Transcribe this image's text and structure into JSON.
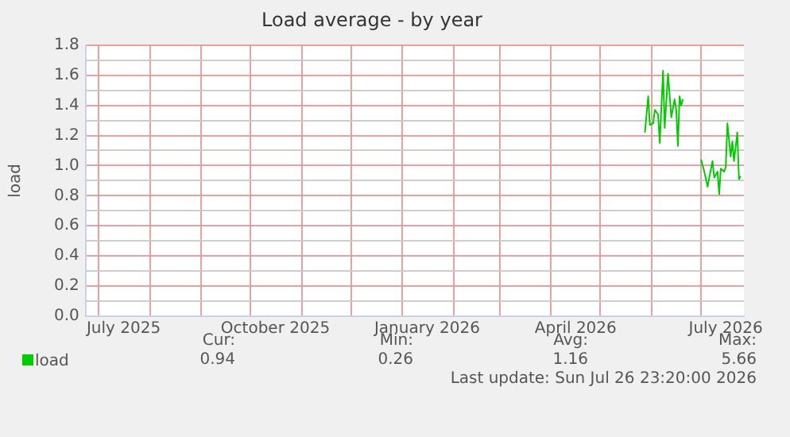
{
  "chart_data": {
    "type": "line",
    "title": "Load average - by year",
    "ylabel": "load",
    "x": [
      "2026-05-28",
      "2026-05-30",
      "2026-05-31",
      "2026-06-02",
      "2026-06-03",
      "2026-06-05",
      "2026-06-06",
      "2026-06-08",
      "2026-06-09",
      "2026-06-11",
      "2026-06-13",
      "2026-06-15",
      "2026-06-16",
      "2026-06-17",
      "2026-06-18",
      "2026-06-19",
      "2026-06-20",
      "2026-06-25",
      "2026-07-01",
      "2026-07-03",
      "2026-07-05",
      "2026-07-06",
      "2026-07-08",
      "2026-07-09",
      "2026-07-11",
      "2026-07-12",
      "2026-07-13",
      "2026-07-15",
      "2026-07-16",
      "2026-07-17",
      "2026-07-19",
      "2026-07-20",
      "2026-07-21",
      "2026-07-23",
      "2026-07-24",
      "2026-07-25"
    ],
    "series": [
      {
        "name": "load",
        "color": "#00cc00",
        "values": [
          1.22,
          1.46,
          1.27,
          1.28,
          1.37,
          1.34,
          1.15,
          1.63,
          1.25,
          1.61,
          1.32,
          1.44,
          1.37,
          1.13,
          1.46,
          1.4,
          1.44,
          null,
          1.04,
          0.96,
          0.86,
          0.92,
          1.03,
          0.92,
          0.96,
          0.81,
          0.98,
          0.96,
          0.99,
          1.28,
          1.06,
          1.16,
          1.03,
          1.22,
          0.91,
          0.93
        ]
      }
    ],
    "xlim": [
      "2025-06-23",
      "2026-07-27"
    ],
    "xticks": [
      {
        "value": "2025-07-01",
        "label": null
      },
      {
        "value": "2025-07-16",
        "label": "July 2025"
      },
      {
        "value": "2025-08-01",
        "label": null
      },
      {
        "value": "2025-09-01",
        "label": null
      },
      {
        "value": "2025-10-01",
        "label": null
      },
      {
        "value": "2025-10-16",
        "label": "October 2025"
      },
      {
        "value": "2025-11-01",
        "label": null
      },
      {
        "value": "2025-12-01",
        "label": null
      },
      {
        "value": "2026-01-01",
        "label": null
      },
      {
        "value": "2026-01-16",
        "label": "January 2026"
      },
      {
        "value": "2026-02-01",
        "label": null
      },
      {
        "value": "2026-03-01",
        "label": null
      },
      {
        "value": "2026-04-01",
        "label": null
      },
      {
        "value": "2026-04-16",
        "label": "April 2026"
      },
      {
        "value": "2026-05-01",
        "label": null
      },
      {
        "value": "2026-06-01",
        "label": null
      },
      {
        "value": "2026-07-01",
        "label": null
      },
      {
        "value": "2026-07-16",
        "label": "July 2026"
      }
    ],
    "ylim": [
      0,
      1.8
    ],
    "yticks": [
      {
        "value": 0,
        "label": "0.0"
      },
      {
        "value": 0.1,
        "label": null
      },
      {
        "value": 0.2,
        "label": "0.2"
      },
      {
        "value": 0.3,
        "label": null
      },
      {
        "value": 0.4,
        "label": "0.4"
      },
      {
        "value": 0.5,
        "label": null
      },
      {
        "value": 0.6,
        "label": "0.6"
      },
      {
        "value": 0.7,
        "label": null
      },
      {
        "value": 0.8,
        "label": "0.8"
      },
      {
        "value": 0.9,
        "label": null
      },
      {
        "value": 1.0,
        "label": "1.0"
      },
      {
        "value": 1.1,
        "label": null
      },
      {
        "value": 1.2,
        "label": "1.2"
      },
      {
        "value": 1.3,
        "label": null
      },
      {
        "value": 1.4,
        "label": "1.4"
      },
      {
        "value": 1.5,
        "label": null
      },
      {
        "value": 1.6,
        "label": "1.6"
      },
      {
        "value": 1.7,
        "label": null
      },
      {
        "value": 1.8,
        "label": "1.8"
      }
    ],
    "grid": true,
    "legend": "bottom left",
    "marker": "none",
    "line_style": "solid",
    "annotations": [
      "Cur:",
      "0.94",
      "Min:",
      "0.26",
      "Avg:",
      "1.16",
      "Max:",
      "5.66",
      "Last update: Sun Jul 26 23:20:00 2026"
    ]
  }
}
